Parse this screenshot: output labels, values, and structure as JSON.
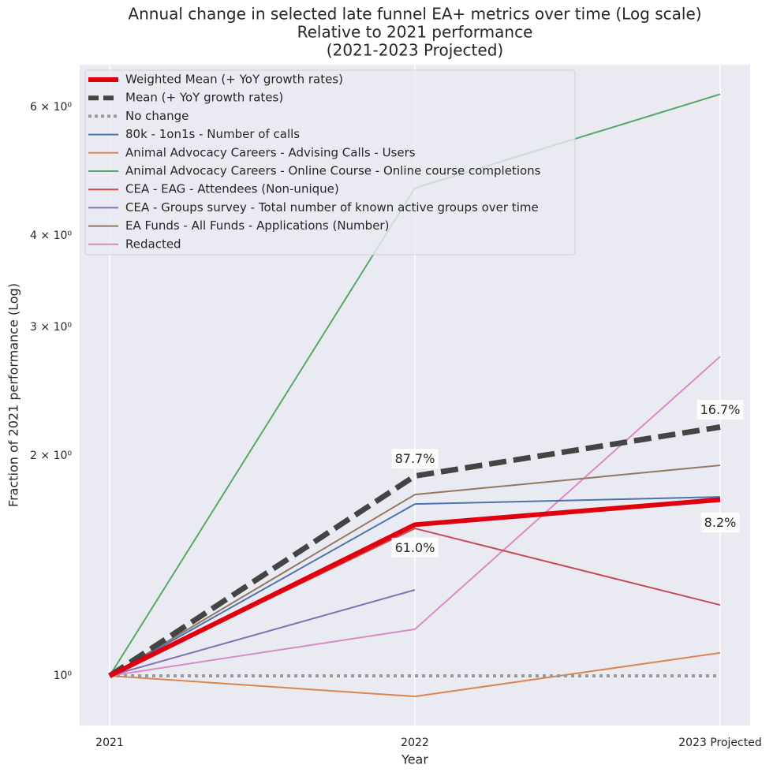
{
  "chart_data": {
    "type": "line",
    "title": "Annual change in selected late funnel EA+ metrics over time (Log scale)",
    "subtitle": [
      "Relative to 2021 performance",
      "(2021-2023 Projected)"
    ],
    "x_label": "Year",
    "y_label": "Fraction of 2021 performance (Log)",
    "categories": [
      "2021",
      "2022",
      "2023 Projected"
    ],
    "log_y": true,
    "grid": "x",
    "legend": "upper left",
    "ylim": [
      0.855,
      6.86
    ],
    "yticks": [
      {
        "value": 1,
        "label": "10⁰"
      },
      {
        "value": 2,
        "label": "2 × 10⁰"
      },
      {
        "value": 3,
        "label": "3 × 10⁰"
      },
      {
        "value": 4,
        "label": "4 × 10⁰"
      },
      {
        "value": 6,
        "label": "6 × 10⁰"
      }
    ],
    "series": [
      {
        "name": "Weighted Mean (+ YoY growth rates)",
        "color": "#e00010",
        "width": 6,
        "style": "solid",
        "values": [
          1,
          1.61,
          1.742
        ],
        "growth_labels": [
          null,
          "61.0%",
          "8.2%"
        ]
      },
      {
        "name": "Mean (+ YoY growth rates)",
        "color": "#444444",
        "width": 7,
        "style": "dashed",
        "values": [
          1,
          1.877,
          2.19
        ],
        "growth_labels": [
          null,
          "87.7%",
          "16.7%"
        ]
      },
      {
        "name": "No change",
        "color": "#999999",
        "width": 4,
        "style": "dotted",
        "values": [
          1,
          1,
          1
        ]
      },
      {
        "name": "80k - 1on1s - Number of calls",
        "color": "#4c72b0",
        "width": 2,
        "style": "solid",
        "values": [
          1,
          1.718,
          1.757
        ]
      },
      {
        "name": "Animal Advocacy Careers - Advising Calls - Users",
        "color": "#dd8452",
        "width": 2,
        "style": "solid",
        "values": [
          1,
          0.937,
          1.075
        ]
      },
      {
        "name": "Animal Advocacy Careers - Online Course - Online course completions",
        "color": "#55a868",
        "width": 2,
        "style": "solid",
        "values": [
          1,
          4.65,
          6.25
        ]
      },
      {
        "name": "CEA - EAG - Attendees (Non-unique)",
        "color": "#c44e52",
        "width": 2,
        "style": "solid",
        "values": [
          1,
          1.591,
          1.25
        ]
      },
      {
        "name": "CEA - Groups survey - Total number of known active groups over time",
        "color": "#8172b3",
        "width": 2,
        "style": "solid",
        "values": [
          1,
          1.311,
          null
        ]
      },
      {
        "name": "EA Funds - All Funds - Applications (Number)",
        "color": "#937860",
        "width": 2,
        "style": "solid",
        "values": [
          1,
          1.77,
          1.941
        ]
      },
      {
        "name": "Redacted",
        "color": "#da8bc3",
        "width": 2,
        "style": "solid",
        "values": [
          1,
          1.158,
          2.735
        ]
      }
    ]
  }
}
